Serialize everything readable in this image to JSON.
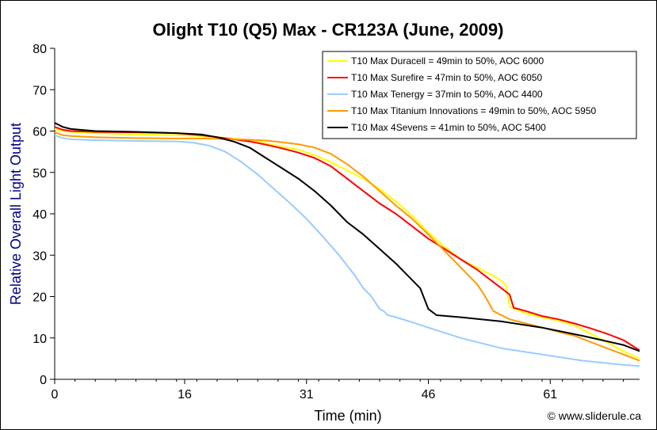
{
  "chart_data": {
    "type": "line",
    "title": "Olight T10 (Q5) Max - CR123A (June, 2009)",
    "xlabel": "Time (min)",
    "ylabel": "Relative Overall Light Output",
    "xlim": [
      0,
      72
    ],
    "ylim": [
      0,
      80
    ],
    "xticks": [
      0,
      16,
      31,
      46,
      61
    ],
    "yticks": [
      0,
      10,
      20,
      30,
      40,
      50,
      60,
      70,
      80
    ],
    "grid": false,
    "legend_position": "top-right",
    "credit": "© www.sliderule.ca",
    "series": [
      {
        "name": "T10 Max Duracell = 49min to 50%, AOC 6000",
        "color": "#ffff00",
        "x": [
          0,
          1,
          2,
          5,
          10,
          15,
          18,
          20,
          22,
          24,
          26,
          28,
          30,
          32,
          34,
          36,
          38,
          40,
          42,
          44,
          46,
          48,
          50,
          52,
          54,
          55,
          55.6,
          56,
          58,
          60,
          62,
          64,
          66,
          68,
          70,
          72
        ],
        "y": [
          60.5,
          60,
          59.8,
          59.5,
          59.2,
          59,
          58.8,
          58.5,
          58.2,
          57.8,
          57,
          56.2,
          55.5,
          54.2,
          52.5,
          50.5,
          48.5,
          46,
          43,
          39.5,
          35.5,
          32,
          29,
          27,
          25,
          23.8,
          22.5,
          17.5,
          16,
          15,
          14.2,
          13,
          11,
          9,
          6.8,
          5
        ]
      },
      {
        "name": "T10 Max Surefire = 47min to 50%, AOC 6050",
        "color": "#ff0000",
        "x": [
          0,
          1,
          2,
          5,
          10,
          15,
          18,
          20,
          22,
          24,
          26,
          28,
          30,
          32,
          34,
          36,
          38,
          40,
          42,
          44,
          46,
          48,
          50,
          52,
          53,
          54,
          55,
          56,
          56.5,
          58,
          60,
          62,
          64,
          66,
          68,
          70,
          72
        ],
        "y": [
          61,
          60.3,
          60,
          59.8,
          59.7,
          59.5,
          59,
          58.5,
          58,
          57.5,
          56.7,
          55.8,
          54.8,
          53.5,
          51.5,
          48.5,
          45.5,
          42.5,
          40,
          37,
          34,
          31.5,
          29,
          26.5,
          25,
          23.5,
          22,
          20.5,
          17.3,
          16.5,
          15.3,
          14.5,
          13.5,
          12.3,
          11,
          9.5,
          7
        ]
      },
      {
        "name": "T10 Max Tenergy = 37min to 50%, AOC 4400",
        "color": "#99ccff",
        "x": [
          0,
          1,
          2,
          5,
          10,
          15,
          17,
          19,
          21,
          23,
          25,
          27,
          29,
          31,
          33,
          35,
          37,
          38,
          39,
          40,
          40.5,
          41,
          42,
          44,
          46,
          50,
          55,
          60,
          65,
          70,
          72
        ],
        "y": [
          59,
          58.3,
          58,
          57.8,
          57.6,
          57.5,
          57.2,
          56.5,
          55,
          52.5,
          49.5,
          46,
          42.5,
          38.8,
          34.5,
          30,
          25,
          22,
          20,
          17,
          16.5,
          15.5,
          15,
          13.8,
          12.5,
          10,
          7.5,
          6,
          4.5,
          3.5,
          3.2
        ]
      },
      {
        "name": "T10 Max Titanium Innovations = 49min to 50%, AOC 5950",
        "color": "#ff9900",
        "x": [
          0,
          1,
          2,
          5,
          10,
          15,
          18,
          20,
          22,
          24,
          26,
          28,
          30,
          32,
          34,
          36,
          38,
          40,
          42,
          44,
          46,
          48,
          50,
          52,
          53,
          54,
          56,
          58,
          60,
          62,
          64,
          66,
          68,
          70,
          72
        ],
        "y": [
          59.7,
          59,
          58.8,
          58.5,
          58.3,
          58.2,
          58.2,
          58.1,
          58,
          57.9,
          57.7,
          57.3,
          56.8,
          56,
          54.5,
          52,
          49,
          45.5,
          42,
          38.8,
          35,
          31,
          27,
          23,
          20,
          16.5,
          14.5,
          13.5,
          12.5,
          11.5,
          10.5,
          9,
          7.5,
          6,
          4.5
        ]
      },
      {
        "name": "T10 Max 4Sevens = 41min to 50%, AOC 5400",
        "color": "#000000",
        "x": [
          0,
          0.5,
          1,
          2,
          5,
          10,
          15,
          18,
          20,
          22,
          24,
          26,
          28,
          30,
          32,
          34,
          36,
          38,
          40,
          42,
          44,
          45,
          46,
          47,
          50,
          55,
          60,
          65,
          70,
          72
        ],
        "y": [
          62,
          61.5,
          61,
          60.5,
          60,
          59.8,
          59.5,
          59.2,
          58.5,
          57.5,
          56,
          53.5,
          51,
          48.5,
          45.5,
          42,
          38,
          35,
          31.5,
          28,
          24,
          22,
          17,
          15.5,
          15,
          14,
          12.5,
          10.5,
          8.3,
          6.8
        ]
      }
    ]
  }
}
